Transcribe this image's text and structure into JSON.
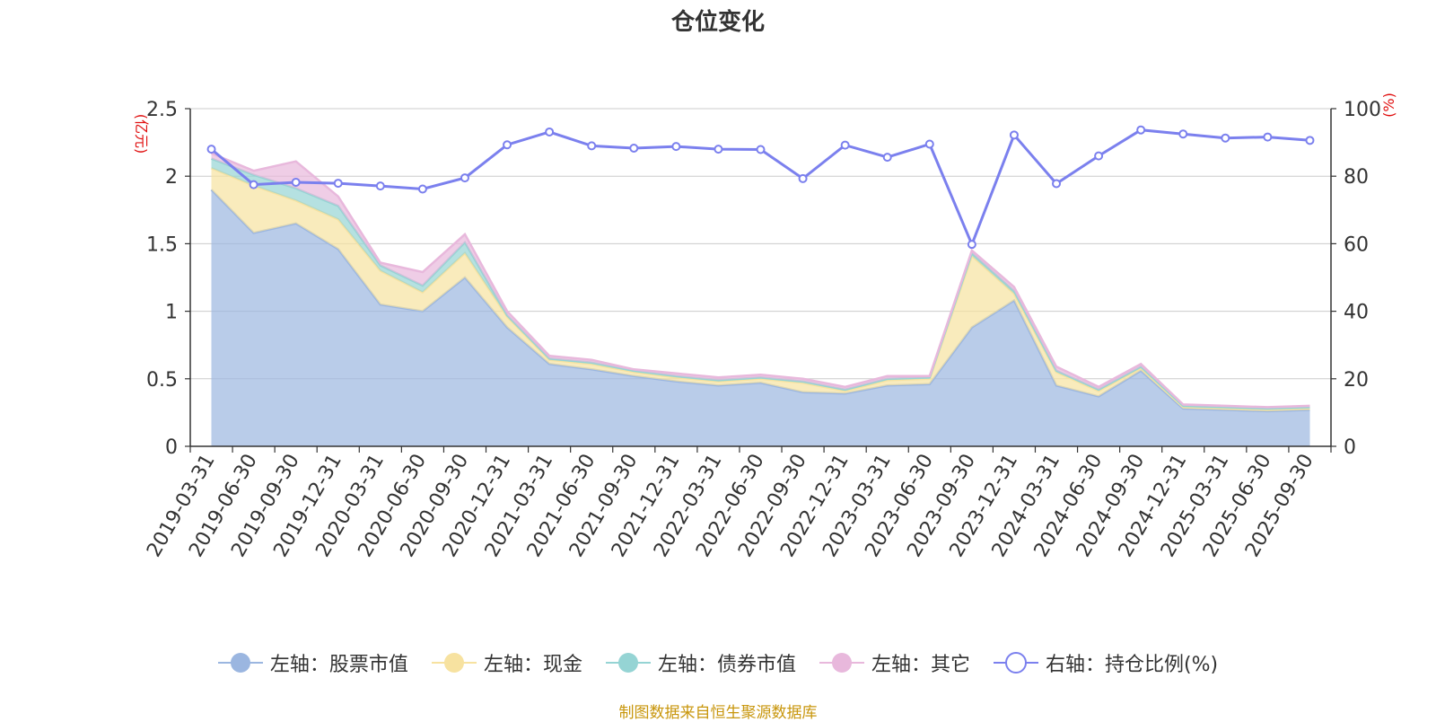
{
  "title": "仓位变化",
  "source": "制图数据来自恒生聚源数据库",
  "chart_data": {
    "type": "area",
    "categories": [
      "2019-03-31",
      "2019-06-30",
      "2019-09-30",
      "2019-12-31",
      "2020-03-31",
      "2020-06-30",
      "2020-09-30",
      "2020-12-31",
      "2021-03-31",
      "2021-06-30",
      "2021-09-30",
      "2021-12-31",
      "2022-03-31",
      "2022-06-30",
      "2022-09-30",
      "2022-12-31",
      "2023-03-31",
      "2023-06-30",
      "2023-09-30",
      "2023-12-31",
      "2024-03-31",
      "2024-06-30",
      "2024-09-30",
      "2024-12-31",
      "2025-03-31",
      "2025-06-30",
      "2025-09-30"
    ],
    "left_axis": {
      "label": "(亿元)",
      "ylim": [
        0,
        2.5
      ],
      "ticks": [
        "0",
        "0.5",
        "1",
        "1.5",
        "2",
        "2.5"
      ]
    },
    "right_axis": {
      "label": "(%)",
      "ylim": [
        0,
        100
      ],
      "ticks": [
        "0",
        "20",
        "40",
        "60",
        "80",
        "100"
      ]
    },
    "grid": true,
    "legend_position": "bottom",
    "series": [
      {
        "name": "左轴：股票市值",
        "axis": "left",
        "type": "area",
        "color": "#9bb6e0",
        "values": [
          1.9,
          1.58,
          1.65,
          1.46,
          1.05,
          1.0,
          1.25,
          0.88,
          0.61,
          0.57,
          0.52,
          0.48,
          0.45,
          0.47,
          0.4,
          0.39,
          0.45,
          0.46,
          0.88,
          1.08,
          0.45,
          0.37,
          0.56,
          0.28,
          0.27,
          0.26,
          0.27
        ]
      },
      {
        "name": "左轴：现金",
        "axis": "left",
        "type": "area",
        "color": "#f7e2a0",
        "values": [
          0.16,
          0.35,
          0.17,
          0.22,
          0.25,
          0.14,
          0.18,
          0.08,
          0.03,
          0.04,
          0.03,
          0.03,
          0.03,
          0.03,
          0.07,
          0.02,
          0.04,
          0.04,
          0.53,
          0.05,
          0.1,
          0.04,
          0.02,
          0.01,
          0.01,
          0.01,
          0.01
        ]
      },
      {
        "name": "左轴：债券市值",
        "axis": "left",
        "type": "area",
        "color": "#95d4d4",
        "values": [
          0.07,
          0.08,
          0.09,
          0.1,
          0.04,
          0.05,
          0.08,
          0.01,
          0.01,
          0.01,
          0.01,
          0.01,
          0.01,
          0.01,
          0.01,
          0.01,
          0.01,
          0.01,
          0.02,
          0.02,
          0.01,
          0.01,
          0.01,
          0.01,
          0.01,
          0.01,
          0.01
        ]
      },
      {
        "name": "左轴：其它",
        "axis": "left",
        "type": "area",
        "color": "#e8b8dc",
        "values": [
          0.04,
          0.03,
          0.2,
          0.07,
          0.02,
          0.1,
          0.06,
          0.03,
          0.02,
          0.02,
          0.01,
          0.02,
          0.02,
          0.02,
          0.02,
          0.02,
          0.02,
          0.01,
          0.02,
          0.03,
          0.03,
          0.02,
          0.02,
          0.01,
          0.01,
          0.01,
          0.01
        ]
      },
      {
        "name": "右轴：持仓比例(%)",
        "axis": "right",
        "type": "line",
        "color": "#7b80ee",
        "values": [
          88,
          77.5,
          78.2,
          77.9,
          77.1,
          76.2,
          79.5,
          89.3,
          93.1,
          89,
          88.3,
          88.8,
          88,
          87.9,
          79.3,
          89.2,
          85.6,
          89.5,
          59.8,
          92.2,
          77.8,
          86,
          93.7,
          92.5,
          91.3,
          91.6,
          90.6
        ]
      }
    ]
  }
}
